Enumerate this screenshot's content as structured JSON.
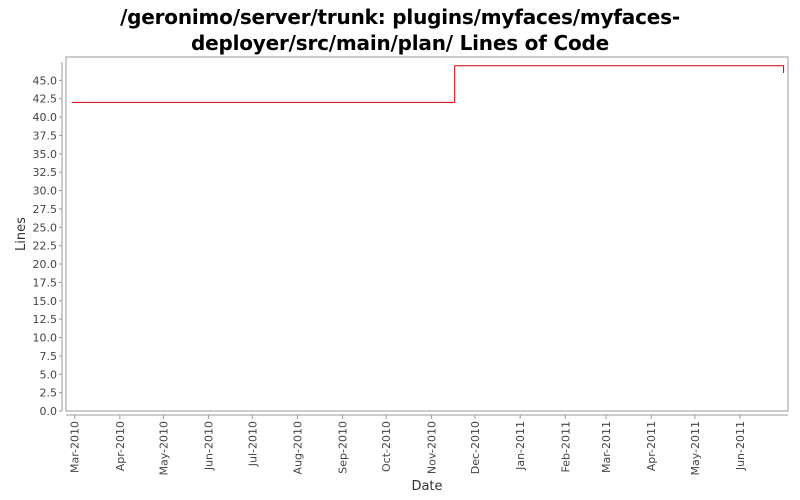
{
  "chart_data": {
    "type": "line",
    "step": true,
    "title_lines": [
      "/geronimo/server/trunk: plugins/myfaces/myfaces-",
      "deployer/src/main/plan/ Lines of Code"
    ],
    "xlabel": "Date",
    "ylabel": "Lines",
    "ylim": [
      0,
      47.5
    ],
    "xlim": [
      "2010-02-23",
      "2011-07-04"
    ],
    "yticks": [
      "0.0",
      "2.5",
      "5.0",
      "7.5",
      "10.0",
      "12.5",
      "15.0",
      "17.5",
      "20.0",
      "22.5",
      "25.0",
      "27.5",
      "30.0",
      "32.5",
      "35.0",
      "37.5",
      "40.0",
      "42.5",
      "45.0"
    ],
    "xticks": [
      {
        "label": "Mar-2010",
        "date": "2010-03-01"
      },
      {
        "label": "Apr-2010",
        "date": "2010-04-01"
      },
      {
        "label": "May-2010",
        "date": "2010-05-01"
      },
      {
        "label": "Jun-2010",
        "date": "2010-06-01"
      },
      {
        "label": "Jul-2010",
        "date": "2010-07-01"
      },
      {
        "label": "Aug-2010",
        "date": "2010-08-01"
      },
      {
        "label": "Sep-2010",
        "date": "2010-09-01"
      },
      {
        "label": "Oct-2010",
        "date": "2010-10-01"
      },
      {
        "label": "Nov-2010",
        "date": "2010-11-01"
      },
      {
        "label": "Dec-2010",
        "date": "2010-12-01"
      },
      {
        "label": "Jan-2011",
        "date": "2011-01-01"
      },
      {
        "label": "Feb-2011",
        "date": "2011-02-01"
      },
      {
        "label": "Mar-2011",
        "date": "2011-03-01"
      },
      {
        "label": "Apr-2011",
        "date": "2011-04-01"
      },
      {
        "label": "May-2011",
        "date": "2011-05-01"
      },
      {
        "label": "Jun-2011",
        "date": "2011-06-01"
      }
    ],
    "series": [
      {
        "color": "#cc0000",
        "points": [
          {
            "x": "2010-02-27",
            "y": 42
          },
          {
            "x": "2010-11-17",
            "y": 42
          },
          {
            "x": "2010-11-17",
            "y": 47
          },
          {
            "x": "2011-07-01",
            "y": 47
          },
          {
            "x": "2011-07-01",
            "y": 46
          }
        ]
      }
    ],
    "grid": false,
    "legend": "none"
  }
}
